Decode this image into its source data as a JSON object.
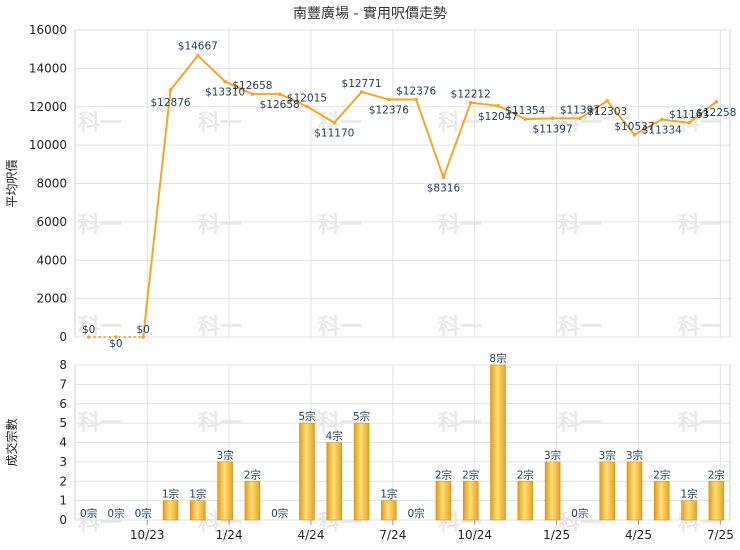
{
  "chart_data": [
    {
      "type": "line",
      "title": "南豐廣場 - 實用呎價走勢",
      "ylabel": "平均呎價",
      "ylim": [
        0,
        16000
      ],
      "yticks": [
        0,
        2000,
        4000,
        6000,
        8000,
        10000,
        12000,
        14000,
        16000
      ],
      "color": "#f6a623",
      "grid": true,
      "series": [
        {
          "values": [
            0,
            0,
            0,
            12876,
            14667,
            13310,
            12658,
            12658,
            12015,
            11170,
            12771,
            12376,
            12376,
            8316,
            12212,
            12047,
            11354,
            11397,
            11397,
            12303,
            10537,
            11334,
            11163,
            12258
          ],
          "labels": [
            "$0",
            "$0",
            "$0",
            "$12876",
            "$14667",
            "$13310",
            "$12658",
            "$12658",
            "$12015",
            "$11170",
            "$12771",
            "$12376",
            "$12376",
            "$8316",
            "$12212",
            "$12047",
            "$11354",
            "$11397",
            "$11397",
            "$12303",
            "$10537",
            "$11334",
            "$11163",
            "$12258"
          ]
        }
      ]
    },
    {
      "type": "bar",
      "ylabel": "成交宗數",
      "ylim": [
        0,
        8
      ],
      "yticks": [
        0,
        1,
        2,
        3,
        4,
        5,
        6,
        7,
        8
      ],
      "grid": true,
      "xticks": [
        "10/23",
        "1/24",
        "4/24",
        "7/24",
        "10/24",
        "1/25",
        "4/25",
        "7/25"
      ],
      "series": [
        {
          "values": [
            0,
            0,
            0,
            1,
            1,
            3,
            2,
            0,
            5,
            4,
            5,
            1,
            0,
            2,
            2,
            8,
            2,
            3,
            0,
            3,
            3,
            2,
            1,
            2
          ],
          "labels": [
            "0宗",
            "0宗",
            "0宗",
            "1宗",
            "1宗",
            "3宗",
            "2宗",
            "0宗",
            "5宗",
            "4宗",
            "5宗",
            "1宗",
            "0宗",
            "2宗",
            "2宗",
            "8宗",
            "2宗",
            "3宗",
            "0宗",
            "3宗",
            "3宗",
            "2宗",
            "1宗",
            "2宗"
          ]
        }
      ]
    }
  ]
}
